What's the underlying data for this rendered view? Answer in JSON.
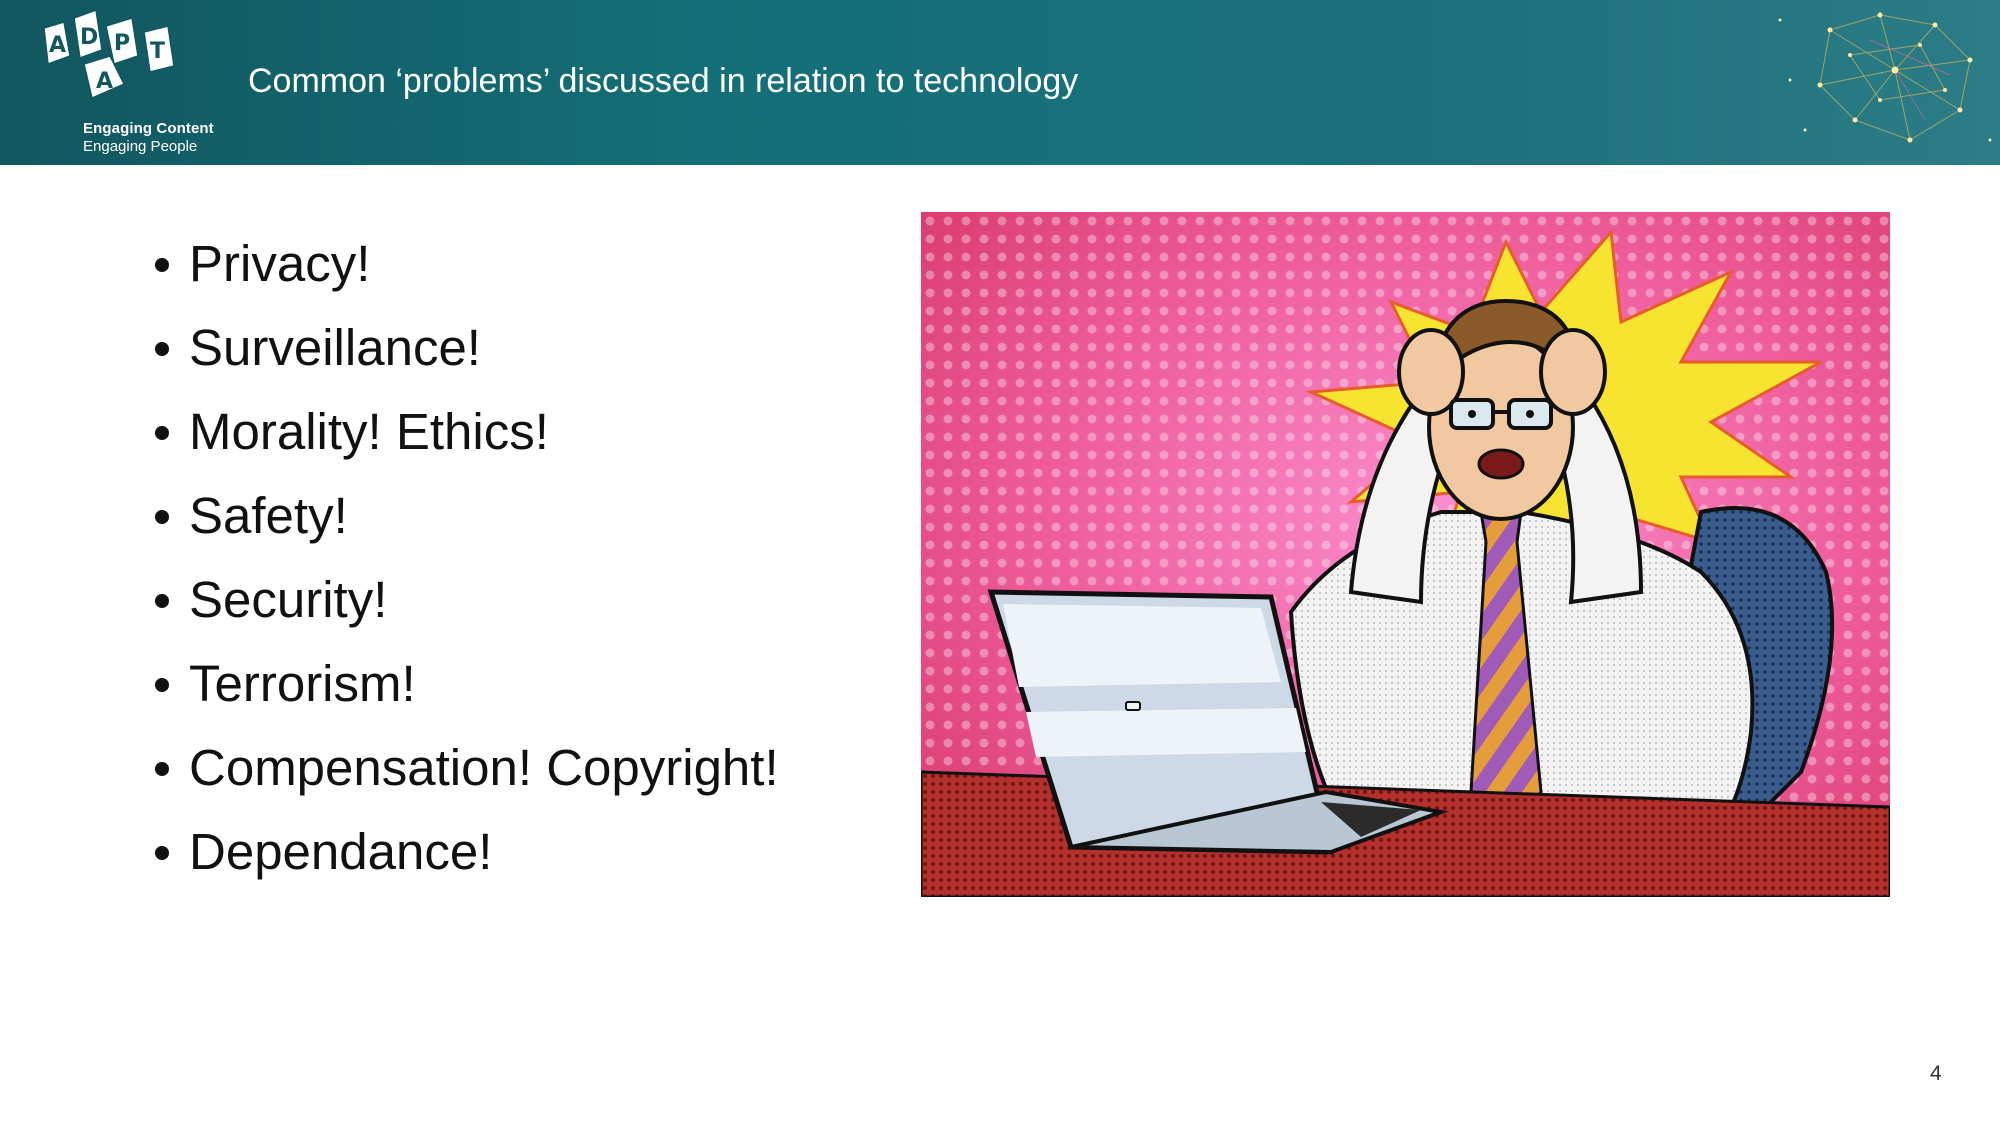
{
  "header": {
    "logo_icon": "adapt-logo-icon",
    "logo_letters": [
      "A",
      "D",
      "A",
      "P",
      "T"
    ],
    "tagline_primary": "Engaging Content",
    "tagline_secondary": "Engaging People",
    "title": "Common ‘problems’ discussed in relation to technology",
    "decoration_icon": "network-brain-icon"
  },
  "bullets": [
    "Privacy!",
    "Surveillance!",
    "Morality! Ethics!",
    "Safety!",
    "Security!",
    "Terrorism!",
    "Compensation! Copyright!",
    "Dependance!"
  ],
  "illustration": {
    "icon": "stressed-man-at-laptop-illustration",
    "colors": {
      "background": "#e8457e",
      "burst": "#f7e431",
      "desk": "#b3302c",
      "chair": "#3a5d8f",
      "tie_stripe_a": "#e59d3b",
      "tie_stripe_b": "#a05ab8"
    }
  },
  "footer": {
    "page_number": "4"
  },
  "theme": {
    "header_color_left": "#12565f",
    "header_color_right": "#2b7c86"
  }
}
